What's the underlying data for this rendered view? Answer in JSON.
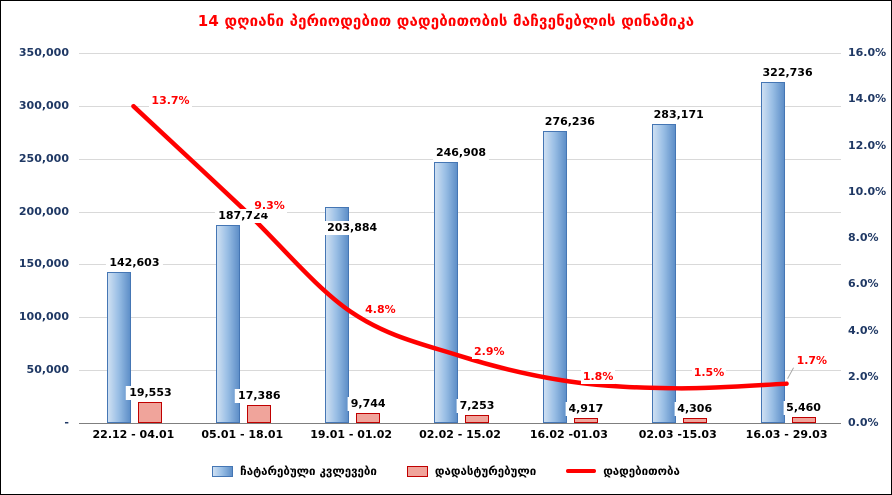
{
  "chart_data": {
    "type": "combo",
    "title": "14 დღიანი პერიოდებით დადებითობის მაჩვენებლის დინამიკა",
    "categories": [
      "22.12 - 04.01",
      "05.01 - 18.01",
      "19.01 - 01.02",
      "02.02 - 15.02",
      "16.02 -01.03",
      "02.03 -15.03",
      "16.03 - 29.03"
    ],
    "series": [
      {
        "name": "ჩატარებული კვლევები",
        "type": "bar",
        "axis": "left",
        "values": [
          142603,
          187724,
          203884,
          246908,
          276236,
          283171,
          322736
        ],
        "labels": [
          "142,603",
          "187,724",
          "203,884",
          "246,908",
          "276,236",
          "283,171",
          "322,736"
        ]
      },
      {
        "name": "დადასტურებული",
        "type": "bar",
        "axis": "left",
        "values": [
          19553,
          17386,
          9744,
          7253,
          4917,
          4306,
          5460
        ],
        "labels": [
          "19,553",
          "17,386",
          "9,744",
          "7,253",
          "4,917",
          "4,306",
          "5,460"
        ]
      },
      {
        "name": "დადებითობა",
        "type": "line",
        "axis": "right",
        "values": [
          13.7,
          9.3,
          4.8,
          2.9,
          1.8,
          1.5,
          1.7
        ],
        "labels": [
          "13.7%",
          "9.3%",
          "4.8%",
          "2.9%",
          "1.8%",
          "1.5%",
          "1.7%"
        ]
      }
    ],
    "left_axis": {
      "min": 0,
      "max": 350000,
      "step": 50000,
      "tick_labels": [
        "-",
        "50,000",
        "100,000",
        "150,000",
        "200,000",
        "250,000",
        "300,000",
        "350,000"
      ]
    },
    "right_axis": {
      "min": 0,
      "max": 16,
      "step": 2,
      "tick_labels": [
        "0.0%",
        "2.0%",
        "4.0%",
        "6.0%",
        "8.0%",
        "10.0%",
        "12.0%",
        "14.0%",
        "16.0%"
      ]
    },
    "grid": true,
    "legend_position": "bottom"
  },
  "colors": {
    "title": "#ff0000",
    "line": "#ff0000",
    "percent_label": "#ff0000",
    "bar_blue_light": "#cfe0f2",
    "bar_blue_mid": "#9cc0e6",
    "bar_blue_dark": "#5e8fc8",
    "bar_blue_border": "#4576b4",
    "bar_red_fill": "#f0a49b",
    "bar_red_border": "#c00000",
    "axis_label": "#1f3864",
    "gridline": "#d9d9d9",
    "leader_line": "#a6a6a6"
  }
}
